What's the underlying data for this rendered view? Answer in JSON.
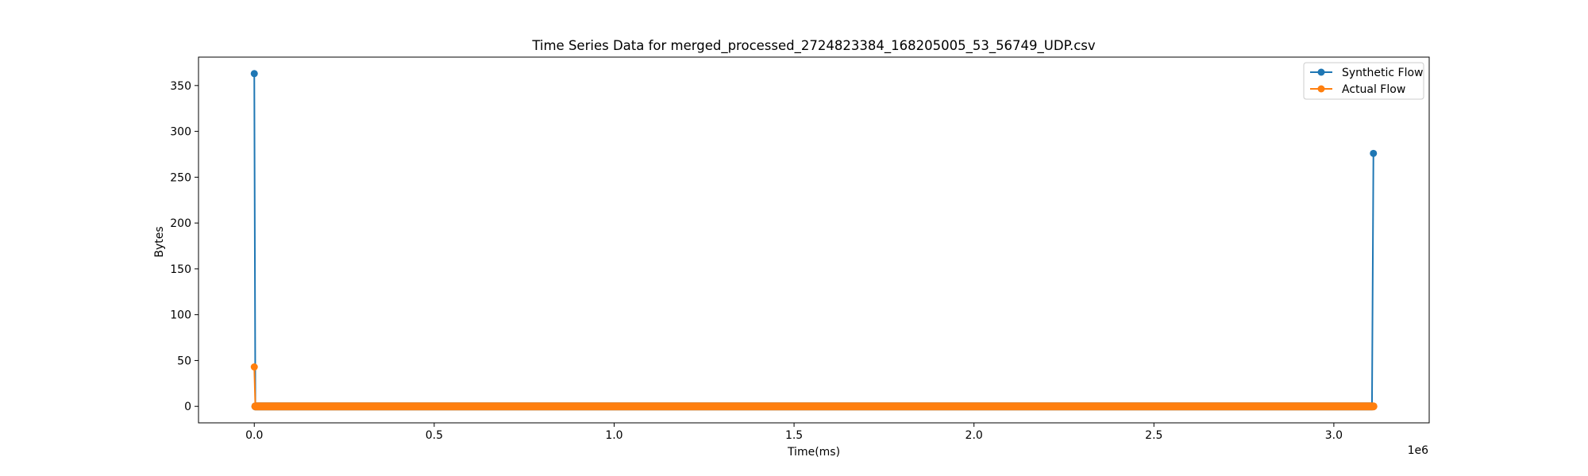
{
  "chart_data": {
    "type": "line",
    "title": "Time Series Data for merged_processed_2724823384_168205005_53_56749_UDP.csv",
    "xlabel": "Time(ms)",
    "ylabel": "Bytes",
    "x_offset_label": "1e6",
    "xlim": [
      -155000,
      3265000
    ],
    "ylim": [
      -18,
      381
    ],
    "x_ticks": [
      0,
      500000,
      1000000,
      1500000,
      2000000,
      2500000,
      3000000
    ],
    "x_tick_labels": [
      "0.0",
      "0.5",
      "1.0",
      "1.5",
      "2.0",
      "2.5",
      "3.0"
    ],
    "y_ticks": [
      0,
      50,
      100,
      150,
      200,
      250,
      300,
      350
    ],
    "y_tick_labels": [
      "0",
      "50",
      "100",
      "150",
      "200",
      "250",
      "300",
      "350"
    ],
    "grid": false,
    "legend_position": "upper right",
    "series": [
      {
        "name": "Synthetic Flow",
        "color": "#1f77b4",
        "marker": "circle",
        "x": [
          0,
          3000,
          3106000,
          3110000
        ],
        "y": [
          363,
          0,
          0,
          276
        ]
      },
      {
        "name": "Actual Flow",
        "color": "#ff7f0e",
        "marker": "circle",
        "x": [
          0,
          3000,
          3110000
        ],
        "y": [
          43,
          0,
          0
        ]
      }
    ]
  }
}
